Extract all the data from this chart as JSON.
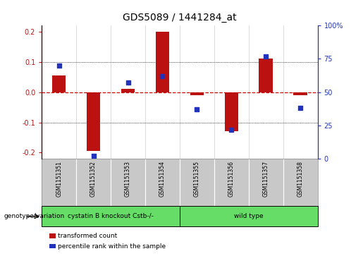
{
  "title": "GDS5089 / 1441284_at",
  "samples": [
    "GSM1151351",
    "GSM1151352",
    "GSM1151353",
    "GSM1151354",
    "GSM1151355",
    "GSM1151356",
    "GSM1151357",
    "GSM1151358"
  ],
  "red_values": [
    0.055,
    -0.195,
    0.01,
    0.2,
    -0.01,
    -0.13,
    0.11,
    -0.01
  ],
  "blue_values_pct": [
    70,
    2,
    57,
    62,
    37,
    22,
    77,
    38
  ],
  "group1_label": "cystatin B knockout Cstb-/-",
  "group2_label": "wild type",
  "group_label_prefix": "genotype/variation",
  "ylim_left": [
    -0.22,
    0.22
  ],
  "ylim_right": [
    0,
    100
  ],
  "yticks_left": [
    -0.2,
    -0.1,
    0,
    0.1,
    0.2
  ],
  "yticks_right": [
    0,
    25,
    50,
    75,
    100
  ],
  "red_color": "#BB1111",
  "blue_color": "#2233BB",
  "legend_red": "transformed count",
  "legend_blue": "percentile rank within the sample",
  "group_color": "#66DD66",
  "header_bg": "#C8C8C8",
  "dashed_red_color": "#CC0000",
  "title_fontsize": 10,
  "tick_fontsize": 7,
  "bar_width": 0.4,
  "blue_square_size": 22
}
